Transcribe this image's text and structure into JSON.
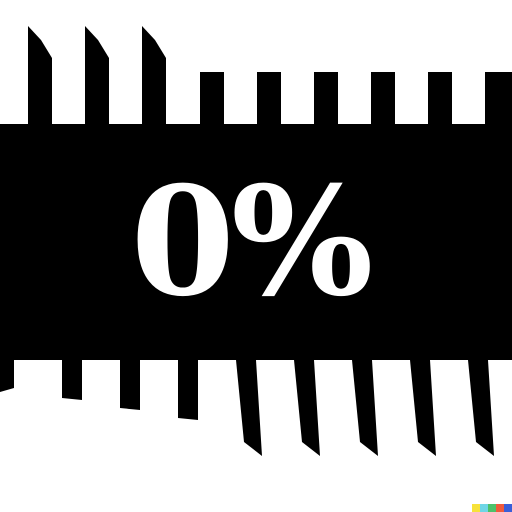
{
  "label": {
    "text": "0%"
  },
  "colors": {
    "background": "#ffffff",
    "band": "#000000",
    "text": "#ffffff",
    "watermark": [
      "#f7e23a",
      "#6fd6e6",
      "#4cc26a",
      "#f05a3c",
      "#3a5ed8"
    ]
  }
}
